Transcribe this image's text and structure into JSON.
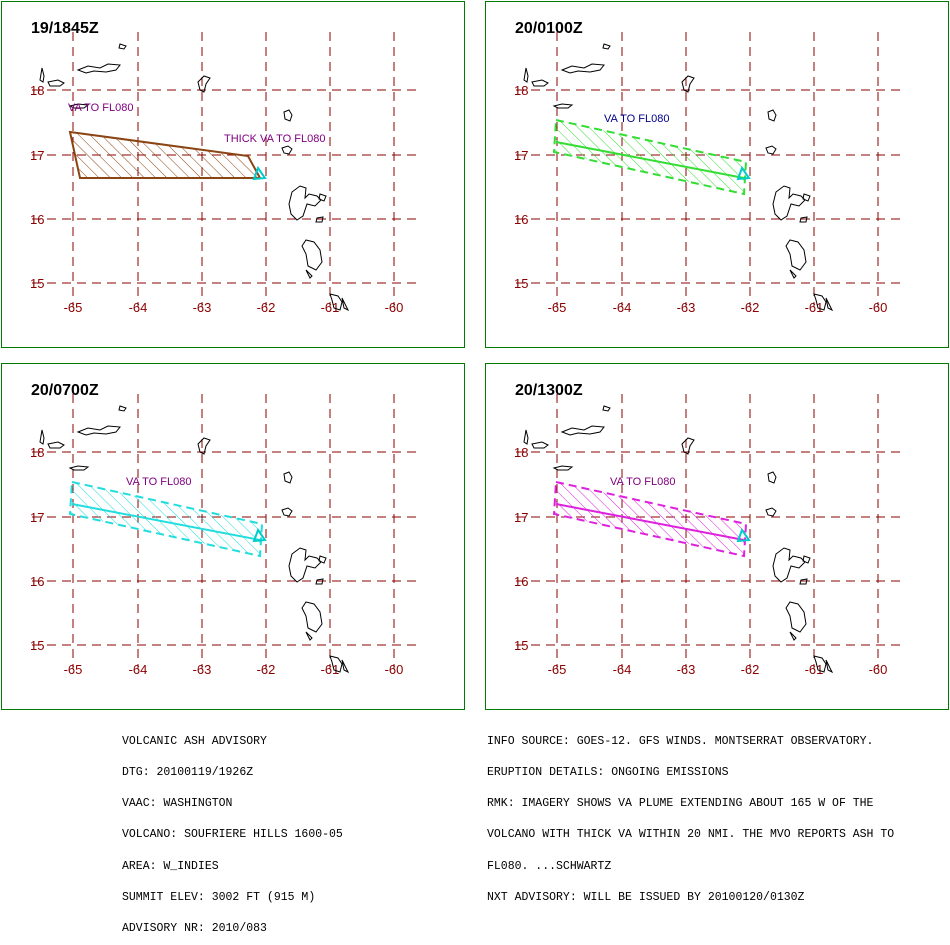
{
  "map": {
    "lat_ticks": [
      "18",
      "17",
      "16",
      "15"
    ],
    "lon_ticks": [
      "-65",
      "-64",
      "-63",
      "-62",
      "-61",
      "-60"
    ],
    "grid_color": "#8b0000",
    "land_color": "#000000"
  },
  "panels": [
    {
      "time": "19/1845Z",
      "labels": {
        "left": "VA TO FL080",
        "right": "THICK VA TO FL080"
      },
      "style": "brown polygon with hatching"
    },
    {
      "time": "20/0100Z",
      "label": "VA  TO  FL080",
      "label_color": "#00008b",
      "style": "green dashed hatched plume"
    },
    {
      "time": "20/0700Z",
      "label": "VA TO FL080",
      "label_color": "#800080",
      "style": "cyan dashed hatched plume"
    },
    {
      "time": "20/1300Z",
      "label": "VA TO FL080",
      "label_color": "#800080",
      "style": "magenta dashed hatched plume"
    }
  ],
  "colors": {
    "panel_border": "#007a00",
    "panel0_plume": "#8b4513",
    "panel1_plume": "#33dd33",
    "panel2_plume": "#22dddd",
    "panel3_plume": "#dd22dd",
    "volcano_marker": "#00cccc"
  },
  "advisory": {
    "left_lines": [
      "VOLCANIC ASH ADVISORY",
      "DTG: 20100119/1926Z",
      "VAAC: WASHINGTON",
      "VOLCANO: SOUFRIERE HILLS 1600-05",
      "AREA: W_INDIES",
      "SUMMIT ELEV: 3002 FT (915 M)",
      "ADVISORY NR: 2010/083"
    ],
    "right_lines": [
      "INFO SOURCE: GOES-12. GFS WINDS. MONTSERRAT OBSERVATORY.",
      "ERUPTION DETAILS: ONGOING EMISSIONS",
      "RMK: IMAGERY SHOWS VA PLUME EXTENDING ABOUT 165 W OF THE",
      "VOLCANO WITH THICK VA WITHIN 20 NMI. THE MVO REPORTS ASH TO",
      "FL080. ...SCHWARTZ",
      "NXT ADVISORY: WILL BE ISSUED BY 20100120/0130Z"
    ]
  }
}
